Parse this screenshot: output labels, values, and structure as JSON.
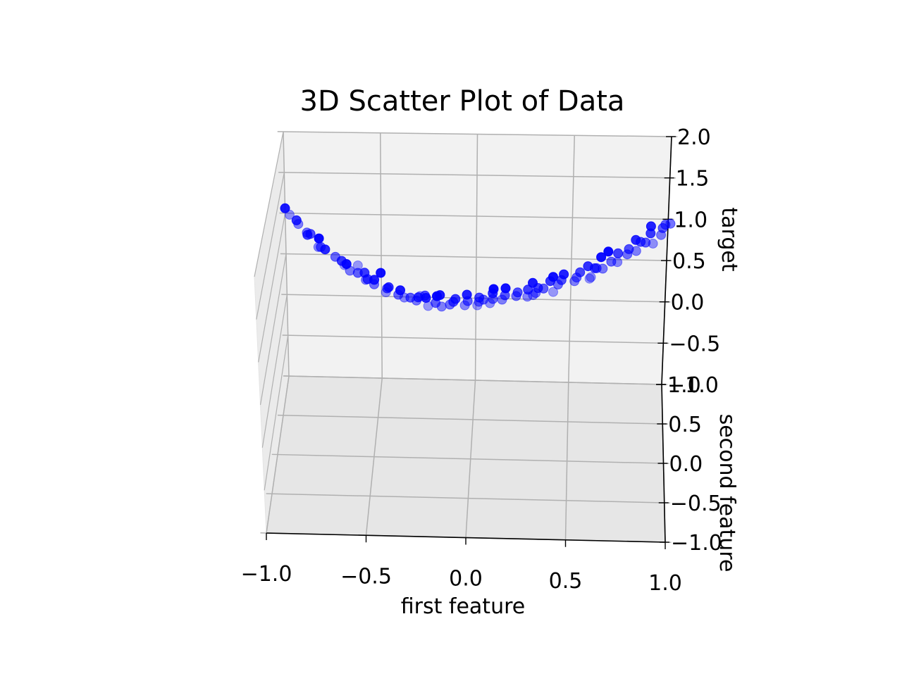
{
  "chart_data": {
    "type": "scatter",
    "projection": "3d",
    "title": "3D Scatter Plot of Data",
    "xlabel": "first feature",
    "ylabel": "second feature",
    "zlabel": "target",
    "xlim": [
      -1.0,
      1.0
    ],
    "ylim": [
      -1.0,
      1.0
    ],
    "zlim": [
      -1.0,
      2.0
    ],
    "x_ticks": [
      "−1.0",
      "−0.5",
      "0.0",
      "0.5",
      "1.0"
    ],
    "y_ticks": [
      "−1.0",
      "−0.5",
      "0.0",
      "0.5",
      "1.0"
    ],
    "z_ticks": [
      "−1.0",
      "−0.5",
      "0.0",
      "0.5",
      "1.0",
      "1.5",
      "2.0"
    ],
    "grid": true,
    "marker_color": "#0000ff",
    "series": [
      {
        "x": [
          -1.0,
          -0.95,
          -0.9,
          -0.88,
          -0.85,
          -0.82,
          -0.78,
          -0.75,
          -0.72,
          -0.7,
          -0.68,
          -0.66,
          -0.63,
          -0.6,
          -0.57,
          -0.55,
          -0.52,
          -0.5,
          -0.47,
          -0.45,
          -0.42,
          -0.4,
          -0.38,
          -0.35,
          -0.33,
          -0.3,
          -0.28,
          -0.25,
          -0.22,
          -0.2,
          -0.18,
          -0.15,
          -0.12,
          -0.1,
          -0.08,
          -0.05,
          -0.03,
          0.0,
          0.02,
          0.05,
          0.08,
          0.1,
          0.12,
          0.15,
          0.18,
          0.2,
          0.22,
          0.25,
          0.28,
          0.3,
          0.32,
          0.35,
          0.38,
          0.4,
          0.42,
          0.45,
          0.48,
          0.5,
          0.52,
          0.55,
          0.58,
          0.6,
          0.62,
          0.65,
          0.68,
          0.7,
          0.72,
          0.75,
          0.78,
          0.8,
          0.82,
          0.85,
          0.88,
          0.9,
          0.92,
          0.95,
          0.97,
          1.0,
          -0.98,
          -0.93,
          -0.8,
          -0.65,
          -0.48,
          -0.32,
          -0.17,
          -0.02,
          0.12,
          0.28,
          0.43,
          0.57,
          0.72,
          0.86,
          0.98,
          -0.87,
          -0.58,
          -0.27,
          0.03,
          0.33,
          0.63,
          0.93
        ],
        "y": [
          0.8,
          0.6,
          0.4,
          -0.2,
          0.7,
          0.1,
          -0.5,
          0.3,
          0.9,
          -0.3,
          0.5,
          -0.8,
          0.2,
          0.6,
          -0.1,
          0.4,
          -0.6,
          0.8,
          0.0,
          -0.4,
          0.3,
          0.7,
          -0.7,
          0.1,
          0.5,
          -0.2,
          0.9,
          -0.5,
          0.2,
          0.6,
          -0.9,
          0.4,
          0.0,
          -0.3,
          0.7,
          0.2,
          -0.6,
          0.5,
          -0.1,
          0.8,
          0.3,
          -0.4,
          0.6,
          0.1,
          -0.8,
          0.4,
          0.0,
          0.7,
          -0.2,
          0.5,
          -0.7,
          0.2,
          0.9,
          -0.3,
          0.4,
          0.0,
          -0.6,
          0.6,
          0.3,
          -0.1,
          0.8,
          -0.4,
          0.1,
          0.5,
          -0.8,
          0.3,
          0.7,
          -0.2,
          0.4,
          0.0,
          0.6,
          -0.5,
          0.2,
          0.8,
          -0.3,
          0.5,
          0.1,
          0.4,
          -0.7,
          -0.4,
          -0.9,
          0.9,
          -0.8,
          0.8,
          -0.7,
          0.9,
          -0.9,
          0.7,
          -0.8,
          0.9,
          -0.9,
          0.0,
          0.2,
          0.0,
          -0.3,
          0.0,
          0.3,
          -0.1,
          0.1,
          -0.6
        ],
        "z": [
          1.05,
          0.92,
          0.8,
          0.72,
          0.65,
          0.6,
          0.52,
          0.5,
          0.45,
          0.4,
          0.35,
          0.32,
          0.3,
          0.25,
          0.2,
          0.18,
          0.15,
          0.12,
          0.1,
          0.08,
          0.05,
          0.05,
          0.02,
          0.0,
          0.0,
          -0.02,
          -0.03,
          -0.05,
          -0.05,
          -0.06,
          -0.06,
          -0.05,
          -0.05,
          -0.04,
          -0.03,
          -0.02,
          -0.01,
          0.0,
          0.0,
          0.01,
          0.02,
          0.03,
          0.04,
          0.05,
          0.06,
          0.07,
          0.08,
          0.09,
          0.1,
          0.12,
          0.14,
          0.15,
          0.17,
          0.2,
          0.22,
          0.24,
          0.26,
          0.28,
          0.3,
          0.33,
          0.35,
          0.38,
          0.4,
          0.43,
          0.46,
          0.5,
          0.53,
          0.56,
          0.6,
          0.63,
          0.66,
          0.7,
          0.73,
          0.77,
          0.8,
          0.85,
          0.9,
          0.98,
          1.0,
          0.88,
          0.62,
          0.45,
          0.22,
          0.08,
          -0.03,
          -0.01,
          0.04,
          0.11,
          0.21,
          0.34,
          0.52,
          0.72,
          0.95,
          0.75,
          0.26,
          0.02,
          0.01,
          0.13,
          0.4,
          0.86
        ]
      }
    ]
  }
}
